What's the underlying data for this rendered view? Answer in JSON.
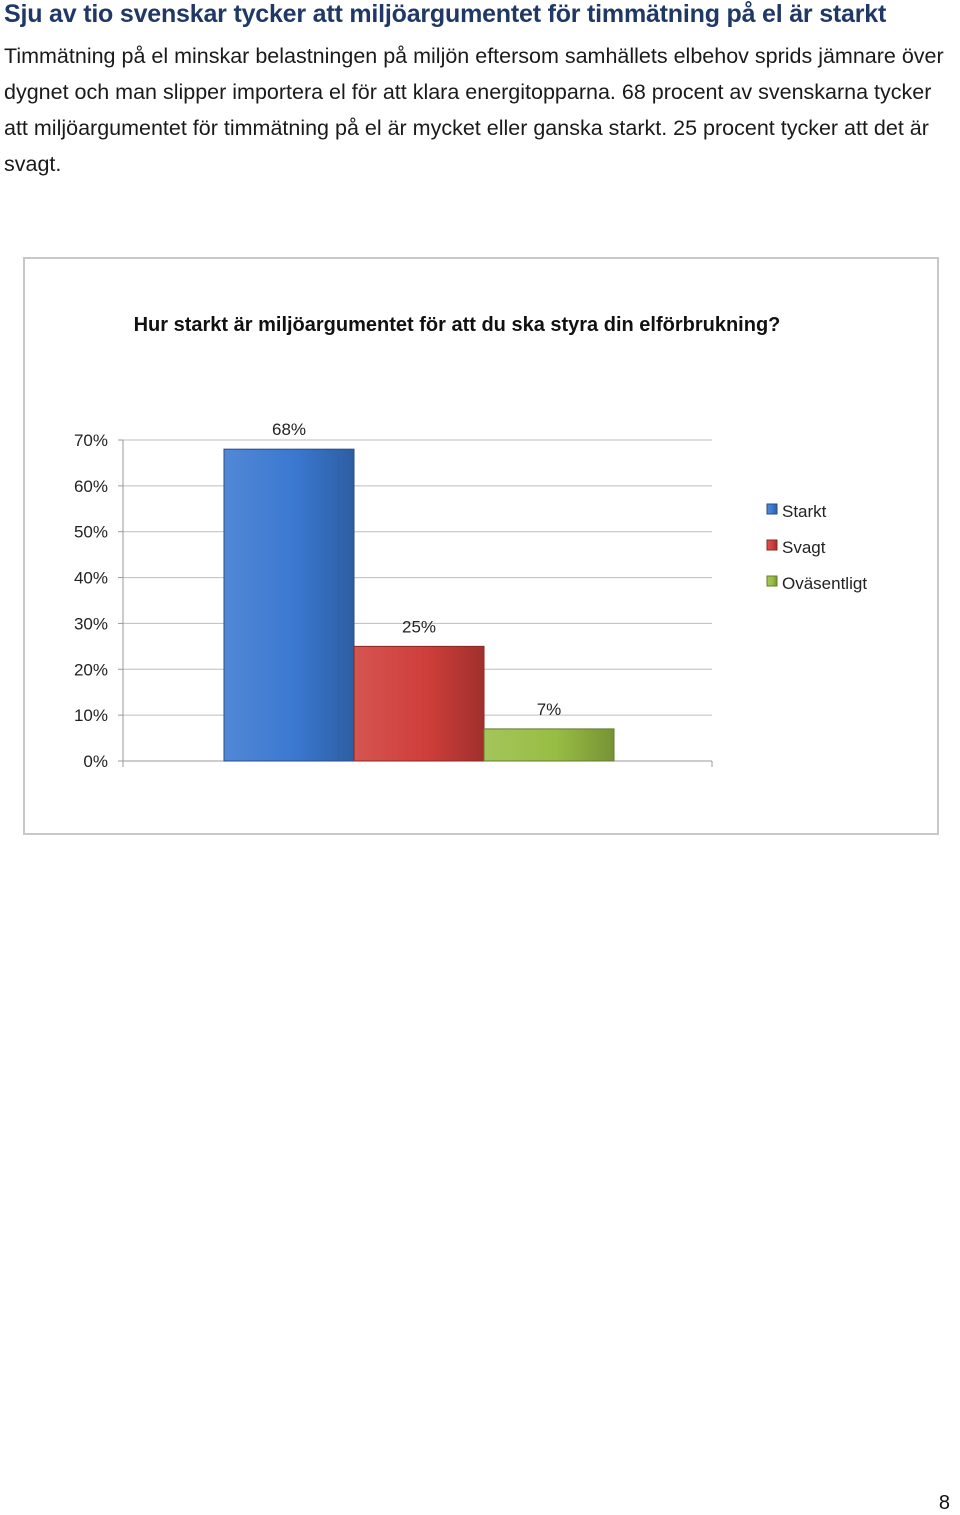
{
  "document": {
    "heading": "Sju av tio svenskar tycker att miljöargumentet för timmätning på el är starkt",
    "paragraph": "Timmätning på el minskar belastningen på miljön eftersom samhällets elbehov sprids jämnare över dygnet och man slipper importera el för att klara energitopparna. 68 procent av svenskarna tycker att miljöargumentet för timmätning på el är mycket eller ganska starkt. 25 procent tycker att det är svagt.",
    "page_number": "8"
  },
  "chart_data": {
    "type": "bar",
    "title": "Hur starkt är miljöargumentet för att du ska styra din elförbrukning?",
    "categories": [
      "Starkt",
      "Svagt",
      "Oväsentligt"
    ],
    "values": [
      68,
      25,
      7
    ],
    "value_labels": [
      "68%",
      "25%",
      "7%"
    ],
    "colors": [
      "#3a78d0",
      "#cf3e3a",
      "#98bd44"
    ],
    "ylim": [
      0,
      70
    ],
    "yticks": [
      0,
      10,
      20,
      30,
      40,
      50,
      60,
      70
    ],
    "ytick_labels": [
      "0%",
      "10%",
      "20%",
      "30%",
      "40%",
      "50%",
      "60%",
      "70%"
    ],
    "grid": true,
    "legend": "right"
  }
}
